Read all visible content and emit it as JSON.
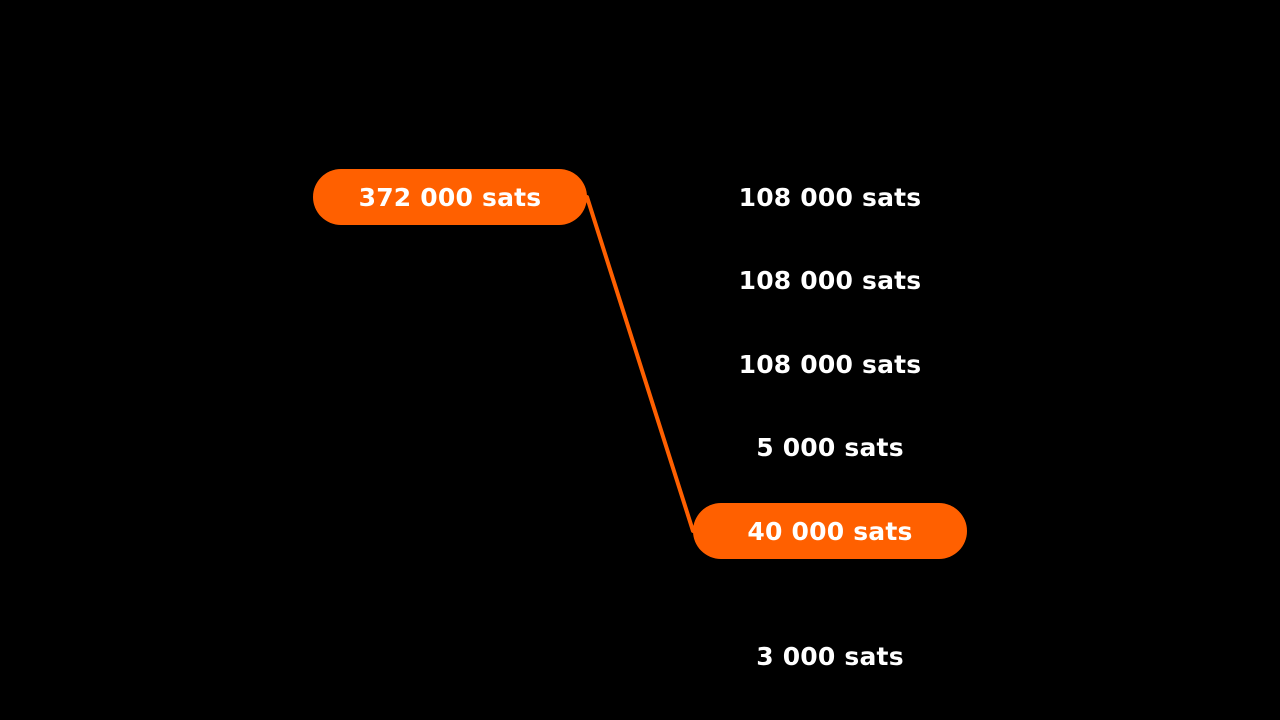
{
  "colors": {
    "background": "#000000",
    "accent": "#ff6000",
    "text": "#ffffff"
  },
  "input": {
    "label": "372 000 sats"
  },
  "outputs": [
    {
      "label": "108 000 sats",
      "highlighted": false
    },
    {
      "label": "108 000 sats",
      "highlighted": false
    },
    {
      "label": "108 000 sats",
      "highlighted": false
    },
    {
      "label": "5 000 sats",
      "highlighted": false
    },
    {
      "label": "40 000 sats",
      "highlighted": true
    },
    {
      "label": "3 000 sats",
      "highlighted": false
    }
  ]
}
